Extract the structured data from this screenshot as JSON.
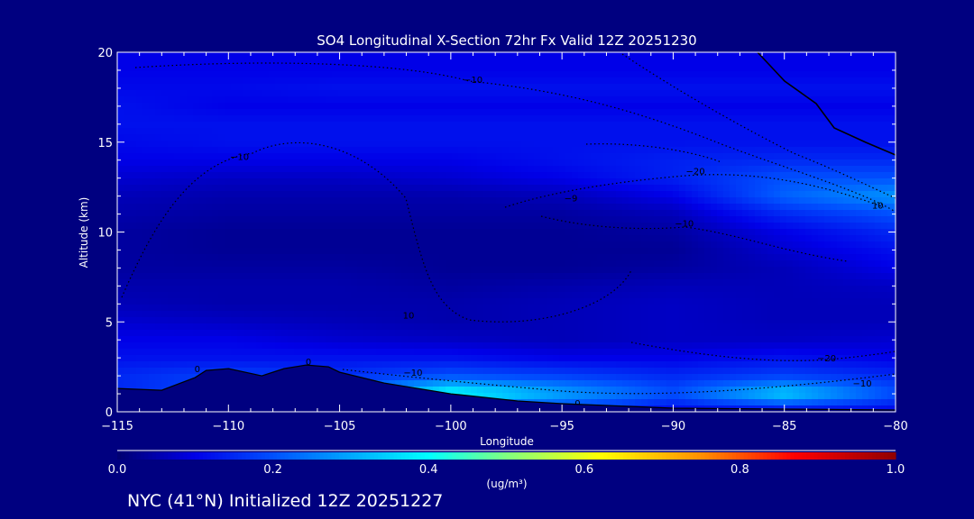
{
  "chart_data": {
    "type": "heatmap",
    "title": "SO4 Longitudinal X-Section 72hr  Fx Valid 12Z 20251230",
    "xlabel": "Longitude",
    "ylabel": "Altitude (km)",
    "xlim": [
      -115,
      -80
    ],
    "ylim": [
      0,
      20
    ],
    "x_ticks": [
      -115,
      -110,
      -105,
      -100,
      -95,
      -90,
      -85,
      -80
    ],
    "x_tick_labels": [
      "−115",
      "−110",
      "−105",
      "−100",
      "−95",
      "−90",
      "−85",
      "−80"
    ],
    "y_ticks": [
      0,
      5,
      10,
      15,
      20
    ],
    "y_tick_labels": [
      "0",
      "5",
      "10",
      "15",
      "20"
    ],
    "grid_lon": [
      -115,
      -110,
      -105,
      -100,
      -95,
      -90,
      -85,
      -80
    ],
    "grid_alt": [
      0,
      1,
      2,
      3,
      4,
      5,
      6,
      7,
      8,
      9,
      10,
      11,
      12,
      13,
      14,
      15,
      16,
      17,
      18,
      19,
      20
    ],
    "values": [
      [
        0.12,
        0.1,
        0.1,
        0.15,
        0.15,
        0.1,
        0.1,
        0.1
      ],
      [
        0.15,
        0.2,
        0.2,
        0.42,
        0.3,
        0.2,
        0.35,
        0.2
      ],
      [
        0.15,
        0.18,
        0.16,
        0.2,
        0.18,
        0.15,
        0.18,
        0.15
      ],
      [
        0.12,
        0.12,
        0.12,
        0.12,
        0.1,
        0.1,
        0.12,
        0.1
      ],
      [
        0.1,
        0.1,
        0.08,
        0.07,
        0.06,
        0.07,
        0.07,
        0.08
      ],
      [
        0.08,
        0.07,
        0.06,
        0.05,
        0.06,
        0.07,
        0.06,
        0.06
      ],
      [
        0.06,
        0.05,
        0.05,
        0.05,
        0.06,
        0.07,
        0.06,
        0.06
      ],
      [
        0.05,
        0.05,
        0.05,
        0.04,
        0.05,
        0.06,
        0.06,
        0.07
      ],
      [
        0.04,
        0.04,
        0.04,
        0.03,
        0.03,
        0.04,
        0.06,
        0.1
      ],
      [
        0.04,
        0.03,
        0.03,
        0.03,
        0.03,
        0.03,
        0.08,
        0.12
      ],
      [
        0.04,
        0.03,
        0.03,
        0.03,
        0.03,
        0.04,
        0.1,
        0.15
      ],
      [
        0.05,
        0.04,
        0.04,
        0.04,
        0.04,
        0.06,
        0.15,
        0.2
      ],
      [
        0.06,
        0.05,
        0.05,
        0.05,
        0.06,
        0.1,
        0.22,
        0.28
      ],
      [
        0.08,
        0.07,
        0.07,
        0.08,
        0.1,
        0.14,
        0.2,
        0.2
      ],
      [
        0.1,
        0.1,
        0.1,
        0.1,
        0.12,
        0.14,
        0.15,
        0.15
      ],
      [
        0.11,
        0.12,
        0.12,
        0.12,
        0.12,
        0.12,
        0.12,
        0.12
      ],
      [
        0.12,
        0.12,
        0.12,
        0.12,
        0.12,
        0.12,
        0.12,
        0.12
      ],
      [
        0.12,
        0.1,
        0.1,
        0.1,
        0.1,
        0.1,
        0.1,
        0.1
      ],
      [
        0.11,
        0.11,
        0.12,
        0.12,
        0.12,
        0.12,
        0.12,
        0.12
      ],
      [
        0.1,
        0.1,
        0.1,
        0.1,
        0.1,
        0.1,
        0.1,
        0.1
      ],
      [
        0.1,
        0.1,
        0.1,
        0.1,
        0.1,
        0.1,
        0.1,
        0.1
      ]
    ],
    "terrain": [
      [
        -115,
        1.3
      ],
      [
        -113,
        1.2
      ],
      [
        -111.5,
        1.9
      ],
      [
        -111,
        2.3
      ],
      [
        -110,
        2.4
      ],
      [
        -108.5,
        2.0
      ],
      [
        -107.5,
        2.4
      ],
      [
        -106.5,
        2.6
      ],
      [
        -105.5,
        2.5
      ],
      [
        -105,
        2.2
      ],
      [
        -103,
        1.6
      ],
      [
        -100,
        1.0
      ],
      [
        -97,
        0.6
      ],
      [
        -95,
        0.45
      ],
      [
        -92,
        0.3
      ],
      [
        -90,
        0.2
      ],
      [
        -85,
        0.15
      ],
      [
        -80,
        0.1
      ]
    ],
    "contour_labels": [
      {
        "text": "−10",
        "lon": -99,
        "alt": 18.3
      },
      {
        "text": "−10",
        "lon": -109.5,
        "alt": 14
      },
      {
        "text": "−20",
        "lon": -89,
        "alt": 13.2
      },
      {
        "text": "−10",
        "lon": -89.5,
        "alt": 10.3
      },
      {
        "text": "10",
        "lon": -80.8,
        "alt": 11.3
      },
      {
        "text": "−9",
        "lon": -94.6,
        "alt": 11.7
      },
      {
        "text": "10",
        "lon": -101.9,
        "alt": 5.2
      },
      {
        "text": "−20",
        "lon": -83.1,
        "alt": 2.8
      },
      {
        "text": "−10",
        "lon": -81.5,
        "alt": 1.4
      },
      {
        "text": "−10",
        "lon": -101.7,
        "alt": 2.0
      },
      {
        "text": "0",
        "lon": -111.4,
        "alt": 2.2
      },
      {
        "text": "0",
        "lon": -106.4,
        "alt": 2.6
      },
      {
        "text": "0",
        "lon": -94.3,
        "alt": 0.3
      }
    ],
    "colorbar": {
      "range": [
        0.0,
        1.0
      ],
      "tick_labels": [
        "0.0",
        "0.2",
        "0.4",
        "0.6",
        "0.8",
        "1.0"
      ],
      "units": "(ug/m³)",
      "colors": [
        "#000070",
        "#0000e8",
        "#0050ff",
        "#00ffff",
        "#80ff80",
        "#ffff00",
        "#ff9000",
        "#ff0000",
        "#900000"
      ]
    },
    "footer": "NYC (41°N) Initialized 12Z 20251227"
  }
}
